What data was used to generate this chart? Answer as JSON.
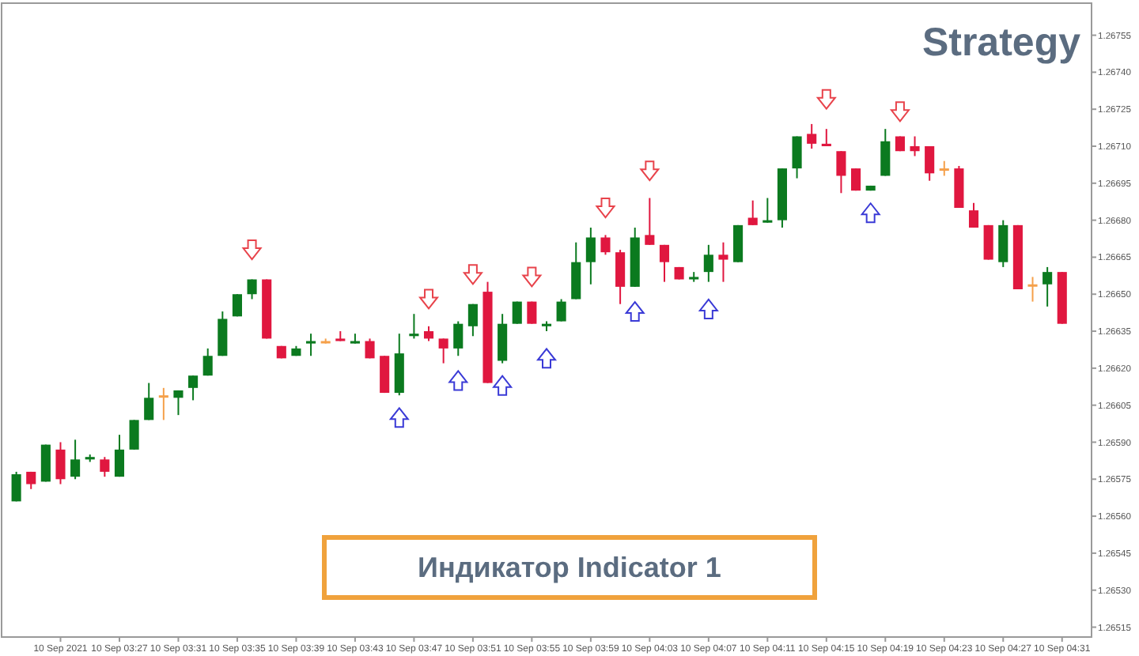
{
  "chart_data": {
    "type": "candlestick",
    "title": "Strategy",
    "annotations": [
      "Индикатор Indicator 1"
    ],
    "x": [
      "2021-09-10T03:20",
      "2021-09-10T03:21",
      "2021-09-10T03:22",
      "2021-09-10T03:23",
      "2021-09-10T03:24",
      "2021-09-10T03:25",
      "2021-09-10T03:26",
      "2021-09-10T03:27",
      "2021-09-10T03:28",
      "2021-09-10T03:29",
      "2021-09-10T03:30",
      "2021-09-10T03:31",
      "2021-09-10T03:32",
      "2021-09-10T03:33",
      "2021-09-10T03:34",
      "2021-09-10T03:35",
      "2021-09-10T03:36",
      "2021-09-10T03:37",
      "2021-09-10T03:38",
      "2021-09-10T03:39",
      "2021-09-10T03:40",
      "2021-09-10T03:41",
      "2021-09-10T03:42",
      "2021-09-10T03:43",
      "2021-09-10T03:44",
      "2021-09-10T03:45",
      "2021-09-10T03:46",
      "2021-09-10T03:47",
      "2021-09-10T03:48",
      "2021-09-10T03:49",
      "2021-09-10T03:50",
      "2021-09-10T03:51",
      "2021-09-10T03:52",
      "2021-09-10T03:53",
      "2021-09-10T03:54",
      "2021-09-10T03:55",
      "2021-09-10T03:56",
      "2021-09-10T03:57",
      "2021-09-10T03:58",
      "2021-09-10T03:59",
      "2021-09-10T04:00",
      "2021-09-10T04:01",
      "2021-09-10T04:02",
      "2021-09-10T04:03",
      "2021-09-10T04:04",
      "2021-09-10T04:05",
      "2021-09-10T04:06",
      "2021-09-10T04:07",
      "2021-09-10T04:08",
      "2021-09-10T04:09",
      "2021-09-10T04:10",
      "2021-09-10T04:11",
      "2021-09-10T04:12",
      "2021-09-10T04:13",
      "2021-09-10T04:14",
      "2021-09-10T04:15",
      "2021-09-10T04:16",
      "2021-09-10T04:17",
      "2021-09-10T04:18",
      "2021-09-10T04:19",
      "2021-09-10T04:20",
      "2021-09-10T04:21",
      "2021-09-10T04:22",
      "2021-09-10T04:23",
      "2021-09-10T04:24",
      "2021-09-10T04:25",
      "2021-09-10T04:26",
      "2021-09-10T04:27",
      "2021-09-10T04:28",
      "2021-09-10T04:29",
      "2021-09-10T04:30",
      "2021-09-10T04:31"
    ],
    "ohlc": [
      [
        1.26566,
        1.26578,
        1.26566,
        1.26577
      ],
      [
        1.26578,
        1.26578,
        1.26571,
        1.26573
      ],
      [
        1.26574,
        1.26589,
        1.26574,
        1.26589
      ],
      [
        1.26587,
        1.2659,
        1.26573,
        1.26575
      ],
      [
        1.26576,
        1.26591,
        1.26575,
        1.26583
      ],
      [
        1.26583,
        1.26585,
        1.26582,
        1.26584
      ],
      [
        1.26583,
        1.26584,
        1.26576,
        1.26578
      ],
      [
        1.26576,
        1.26593,
        1.26576,
        1.26587
      ],
      [
        1.26587,
        1.26599,
        1.26587,
        1.26599
      ],
      [
        1.26599,
        1.26614,
        1.26599,
        1.26608
      ],
      [
        1.26609,
        1.26612,
        1.26599,
        1.26609
      ],
      [
        1.26608,
        1.26611,
        1.26601,
        1.26611
      ],
      [
        1.26612,
        1.26617,
        1.26607,
        1.26617
      ],
      [
        1.26617,
        1.26628,
        1.26617,
        1.26625
      ],
      [
        1.26625,
        1.26643,
        1.26625,
        1.2664
      ],
      [
        1.26641,
        1.2665,
        1.26641,
        1.2665
      ],
      [
        1.2665,
        1.26656,
        1.26648,
        1.26656
      ],
      [
        1.26656,
        1.26656,
        1.26632,
        1.26632
      ],
      [
        1.26629,
        1.26629,
        1.26624,
        1.26624
      ],
      [
        1.26625,
        1.26629,
        1.26625,
        1.26628
      ],
      [
        1.2663,
        1.26634,
        1.26625,
        1.26631
      ],
      [
        1.26631,
        1.26632,
        1.2663,
        1.26631
      ],
      [
        1.26632,
        1.26635,
        1.26631,
        1.26631
      ],
      [
        1.2663,
        1.26634,
        1.2663,
        1.26631
      ],
      [
        1.26631,
        1.26632,
        1.26624,
        1.26624
      ],
      [
        1.26625,
        1.26625,
        1.2661,
        1.2661
      ],
      [
        1.2661,
        1.26634,
        1.26609,
        1.26626
      ],
      [
        1.26633,
        1.26642,
        1.26632,
        1.26634
      ],
      [
        1.26635,
        1.26637,
        1.26631,
        1.26632
      ],
      [
        1.26632,
        1.26632,
        1.26622,
        1.26628
      ],
      [
        1.26628,
        1.26639,
        1.26625,
        1.26638
      ],
      [
        1.26637,
        1.26646,
        1.26633,
        1.26646
      ],
      [
        1.26651,
        1.26655,
        1.26614,
        1.26614
      ],
      [
        1.26623,
        1.26642,
        1.26622,
        1.26638
      ],
      [
        1.26638,
        1.26647,
        1.26638,
        1.26647
      ],
      [
        1.26647,
        1.26647,
        1.26638,
        1.26638
      ],
      [
        1.26637,
        1.26639,
        1.26635,
        1.26638
      ],
      [
        1.26639,
        1.26648,
        1.26639,
        1.26647
      ],
      [
        1.26648,
        1.26671,
        1.26648,
        1.26663
      ],
      [
        1.26663,
        1.26677,
        1.26654,
        1.26673
      ],
      [
        1.26673,
        1.26674,
        1.26666,
        1.26667
      ],
      [
        1.26667,
        1.26668,
        1.26646,
        1.26653
      ],
      [
        1.26653,
        1.26677,
        1.26653,
        1.26673
      ],
      [
        1.26674,
        1.26689,
        1.2667,
        1.2667
      ],
      [
        1.2667,
        1.2667,
        1.26655,
        1.26663
      ],
      [
        1.26661,
        1.26661,
        1.26656,
        1.26656
      ],
      [
        1.26656,
        1.26659,
        1.26655,
        1.26657
      ],
      [
        1.26659,
        1.2667,
        1.26655,
        1.26666
      ],
      [
        1.26666,
        1.26671,
        1.26655,
        1.26664
      ],
      [
        1.26663,
        1.26678,
        1.26663,
        1.26678
      ],
      [
        1.26681,
        1.26688,
        1.26678,
        1.26678
      ],
      [
        1.26679,
        1.26689,
        1.26679,
        1.2668
      ],
      [
        1.2668,
        1.26701,
        1.26677,
        1.26701
      ],
      [
        1.26701,
        1.26714,
        1.26697,
        1.26714
      ],
      [
        1.26715,
        1.26719,
        1.26709,
        1.26711
      ],
      [
        1.26711,
        1.26717,
        1.2671,
        1.2671
      ],
      [
        1.26708,
        1.26708,
        1.26691,
        1.26698
      ],
      [
        1.26701,
        1.26701,
        1.26692,
        1.26692
      ],
      [
        1.26692,
        1.26694,
        1.26692,
        1.26694
      ],
      [
        1.26698,
        1.26717,
        1.26698,
        1.26712
      ],
      [
        1.26714,
        1.26714,
        1.26708,
        1.26708
      ],
      [
        1.2671,
        1.26714,
        1.26706,
        1.26708
      ],
      [
        1.2671,
        1.2671,
        1.26696,
        1.26699
      ],
      [
        1.26701,
        1.26704,
        1.26698,
        1.26701
      ],
      [
        1.26701,
        1.26702,
        1.26685,
        1.26685
      ],
      [
        1.26684,
        1.26687,
        1.26677,
        1.26677
      ],
      [
        1.26678,
        1.26678,
        1.26664,
        1.26664
      ],
      [
        1.26663,
        1.2668,
        1.26661,
        1.26678
      ],
      [
        1.26678,
        1.26678,
        1.26652,
        1.26652
      ],
      [
        1.26654,
        1.26657,
        1.26647,
        1.26654
      ],
      [
        1.26654,
        1.26661,
        1.26645,
        1.26659
      ],
      [
        1.26659,
        1.26659,
        1.26638,
        1.26638
      ]
    ],
    "colors": [
      "#0b7a1f",
      "#e0173f",
      "#0b7a1f",
      "#e0173f",
      "#0b7a1f",
      "#0b7a1f",
      "#e0173f",
      "#0b7a1f",
      "#0b7a1f",
      "#0b7a1f",
      "#f5a04a",
      "#0b7a1f",
      "#0b7a1f",
      "#0b7a1f",
      "#0b7a1f",
      "#0b7a1f",
      "#0b7a1f",
      "#e0173f",
      "#e0173f",
      "#0b7a1f",
      "#0b7a1f",
      "#f5a04a",
      "#e0173f",
      "#0b7a1f",
      "#e0173f",
      "#e0173f",
      "#0b7a1f",
      "#0b7a1f",
      "#e0173f",
      "#e0173f",
      "#0b7a1f",
      "#0b7a1f",
      "#e0173f",
      "#0b7a1f",
      "#0b7a1f",
      "#e0173f",
      "#0b7a1f",
      "#0b7a1f",
      "#0b7a1f",
      "#0b7a1f",
      "#e0173f",
      "#e0173f",
      "#0b7a1f",
      "#e0173f",
      "#e0173f",
      "#e0173f",
      "#0b7a1f",
      "#0b7a1f",
      "#e0173f",
      "#0b7a1f",
      "#e0173f",
      "#0b7a1f",
      "#0b7a1f",
      "#0b7a1f",
      "#e0173f",
      "#e0173f",
      "#e0173f",
      "#e0173f",
      "#0b7a1f",
      "#0b7a1f",
      "#e0173f",
      "#e0173f",
      "#e0173f",
      "#f5a04a",
      "#e0173f",
      "#e0173f",
      "#e0173f",
      "#0b7a1f",
      "#e0173f",
      "#f5a04a",
      "#0b7a1f",
      "#e0173f"
    ],
    "series": [
      {
        "type": "scatter",
        "color": "#e8434b",
        "x": [
          "2021-09-10T03:36",
          "2021-09-10T03:48",
          "2021-09-10T03:51",
          "2021-09-10T03:55",
          "2021-09-10T04:00",
          "2021-09-10T04:03",
          "2021-09-10T04:15",
          "2021-09-10T04:20"
        ],
        "values": [
          1.26668,
          1.26648,
          1.26658,
          1.26657,
          1.26685,
          1.267,
          1.26729,
          1.26724
        ]
      },
      {
        "type": "scatter",
        "color": "#3a3ad6",
        "x": [
          "2021-09-10T03:46",
          "2021-09-10T03:50",
          "2021-09-10T03:53",
          "2021-09-10T03:56",
          "2021-09-10T04:02",
          "2021-09-10T04:07",
          "2021-09-10T04:18"
        ],
        "values": [
          1.266,
          1.26615,
          1.26613,
          1.26624,
          1.26643,
          1.26644,
          1.26683
        ]
      }
    ],
    "xlim": [
      "2021-09-10T03:19",
      "2021-09-10T04:33"
    ],
    "xticks": [
      {
        "value": "2021-09-10T03:23",
        "label": "10 Sep 2021"
      },
      {
        "value": "2021-09-10T03:27",
        "label": "10 Sep 03:27"
      },
      {
        "value": "2021-09-10T03:31",
        "label": "10 Sep 03:31"
      },
      {
        "value": "2021-09-10T03:35",
        "label": "10 Sep 03:35"
      },
      {
        "value": "2021-09-10T03:39",
        "label": "10 Sep 03:39"
      },
      {
        "value": "2021-09-10T03:43",
        "label": "10 Sep 03:43"
      },
      {
        "value": "2021-09-10T03:47",
        "label": "10 Sep 03:47"
      },
      {
        "value": "2021-09-10T03:51",
        "label": "10 Sep 03:51"
      },
      {
        "value": "2021-09-10T03:55",
        "label": "10 Sep 03:55"
      },
      {
        "value": "2021-09-10T03:59",
        "label": "10 Sep 03:59"
      },
      {
        "value": "2021-09-10T04:03",
        "label": "10 Sep 04:03"
      },
      {
        "value": "2021-09-10T04:07",
        "label": "10 Sep 04:07"
      },
      {
        "value": "2021-09-10T04:11",
        "label": "10 Sep 04:11"
      },
      {
        "value": "2021-09-10T04:15",
        "label": "10 Sep 04:15"
      },
      {
        "value": "2021-09-10T04:19",
        "label": "10 Sep 04:19"
      },
      {
        "value": "2021-09-10T04:23",
        "label": "10 Sep 04:23"
      },
      {
        "value": "2021-09-10T04:27",
        "label": "10 Sep 04:27"
      },
      {
        "value": "2021-09-10T04:31",
        "label": "10 Sep 04:31"
      }
    ],
    "ylim": [
      1.26511,
      1.26768
    ],
    "yticks": [
      1.26515,
      {
        "value": 1.2653,
        "label": "1.26530"
      },
      1.26545,
      {
        "value": 1.2656,
        "label": "1.26560"
      },
      1.26575,
      {
        "value": 1.2659,
        "label": "1.26590"
      },
      1.26605,
      {
        "value": 1.2662,
        "label": "1.26620"
      },
      1.26635,
      {
        "value": 1.2665,
        "label": "1.26650"
      },
      1.26665,
      {
        "value": 1.2668,
        "label": "1.26680"
      },
      1.26695,
      {
        "value": 1.2671,
        "label": "1.26710"
      },
      1.26725,
      {
        "value": 1.2674,
        "label": "1.26740"
      },
      1.26755
    ]
  }
}
